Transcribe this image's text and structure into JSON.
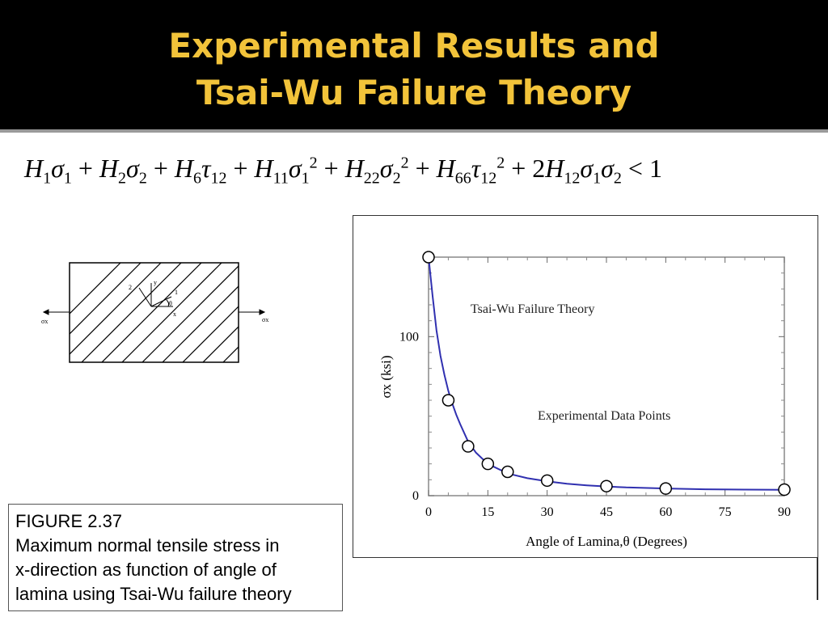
{
  "header": {
    "title_line1": "Experimental Results and",
    "title_line2": "Tsai-Wu Failure Theory",
    "title_color": "#f2c33a",
    "background_color": "#000000"
  },
  "equation": {
    "text": "H1σ1 + H2σ2 + H6τ12 + H11σ1² + H22σ2² + H66τ12² + 2H12σ1σ2 < 1"
  },
  "diagram": {
    "axis_2_label": "2",
    "axis_y_label": "y",
    "axis_1_label": "1",
    "angle_label": "θ",
    "axis_x_label": "x",
    "left_stress_label": "σx",
    "right_stress_label": "σx"
  },
  "caption": {
    "line1": "FIGURE 2.37",
    "line2": "Maximum normal tensile stress in",
    "line3": "x-direction as function of angle of",
    "line4": "lamina using Tsai-Wu failure theory"
  },
  "chart_data": {
    "type": "line",
    "xlabel": "Angle of Lamina,θ (Degrees)",
    "ylabel": "σx (ksi)",
    "xlim": [
      0,
      90
    ],
    "ylim": [
      0,
      150
    ],
    "x_ticks": [
      0,
      15,
      30,
      45,
      60,
      75,
      90
    ],
    "y_ticks": [
      0,
      100
    ],
    "annotations": [
      "Tsai-Wu Failure Theory",
      "Experimental Data Points"
    ],
    "series": [
      {
        "kind": "curve",
        "x": [
          0,
          1,
          2,
          3,
          4,
          5,
          6,
          7,
          8,
          10,
          12,
          15,
          20,
          25,
          30,
          35,
          40,
          45,
          50,
          60,
          70,
          80,
          90
        ],
        "y": [
          150,
          126,
          104,
          88,
          76,
          66,
          58,
          51,
          45,
          34,
          27,
          20,
          14,
          11,
          9,
          7.5,
          6.5,
          5.8,
          5.2,
          4.5,
          4.0,
          3.8,
          3.7
        ],
        "color": "#3030b0"
      },
      {
        "kind": "points",
        "x": [
          0,
          5,
          10,
          15,
          20,
          30,
          45,
          60,
          90
        ],
        "y": [
          150,
          60,
          31,
          20,
          15,
          9.5,
          6,
          4.5,
          3.8
        ],
        "color": "#000000"
      }
    ]
  }
}
